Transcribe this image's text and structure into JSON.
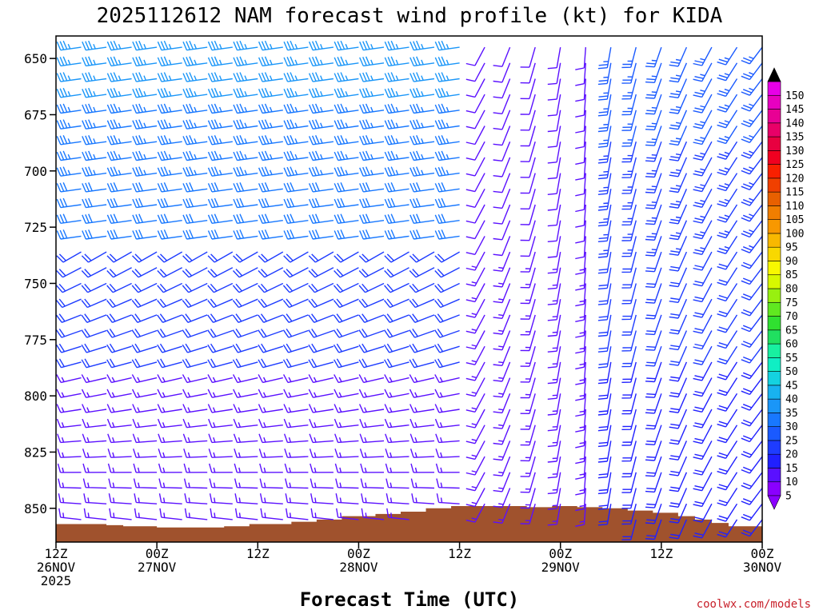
{
  "chart_data": {
    "type": "wind-barb-profile",
    "title": "2025112612 NAM forecast wind profile (kt) for KIDA",
    "xlabel": "Forecast Time (UTC)",
    "ylabel": "",
    "credit": "coolwx.com/models",
    "y_axis": {
      "range": [
        640,
        865
      ],
      "ticks": [
        650,
        675,
        700,
        725,
        750,
        775,
        800,
        825,
        850
      ],
      "inverted": true
    },
    "x_axis": {
      "range_hours": [
        0,
        84
      ],
      "ticks": [
        {
          "h": 0,
          "line1": "12Z",
          "line2": "26NOV",
          "line3": "2025"
        },
        {
          "h": 12,
          "line1": "00Z",
          "line2": "27NOV",
          "line3": ""
        },
        {
          "h": 24,
          "line1": "12Z",
          "line2": "",
          "line3": ""
        },
        {
          "h": 36,
          "line1": "00Z",
          "line2": "28NOV",
          "line3": ""
        },
        {
          "h": 48,
          "line1": "12Z",
          "line2": "",
          "line3": ""
        },
        {
          "h": 60,
          "line1": "00Z",
          "line2": "29NOV",
          "line3": ""
        },
        {
          "h": 72,
          "line1": "12Z",
          "line2": "",
          "line3": ""
        },
        {
          "h": 84,
          "line1": "00Z",
          "line2": "30NOV",
          "line3": ""
        }
      ]
    },
    "colorbar": {
      "labels": [
        5,
        10,
        15,
        20,
        25,
        30,
        35,
        40,
        45,
        50,
        55,
        60,
        65,
        70,
        75,
        80,
        85,
        90,
        95,
        100,
        105,
        110,
        115,
        120,
        125,
        130,
        135,
        140,
        145,
        150
      ],
      "colors": [
        "#8a00ff",
        "#5a10ff",
        "#2020ff",
        "#1e3cff",
        "#1a5aff",
        "#1878ff",
        "#1a96f8",
        "#18b2f0",
        "#14d2e0",
        "#10eec4",
        "#18f0a0",
        "#20e060",
        "#30e030",
        "#60e820",
        "#98f010",
        "#d8f800",
        "#f8f800",
        "#f8d800",
        "#f8b800",
        "#f89800",
        "#f07e00",
        "#e86000",
        "#f04000",
        "#f82000",
        "#f00020",
        "#e80040",
        "#e80068",
        "#e80094",
        "#e800c0",
        "#e800e8"
      ],
      "arrow_top_color": "#000000",
      "arrow_bottom_color": "#8a00ff"
    },
    "terrain_color": "#a0522d",
    "terrain_pressure": [
      {
        "h": 0,
        "p": 857
      },
      {
        "h": 4,
        "p": 857
      },
      {
        "h": 6,
        "p": 857.5
      },
      {
        "h": 8,
        "p": 858
      },
      {
        "h": 12,
        "p": 858.5
      },
      {
        "h": 17,
        "p": 858.5
      },
      {
        "h": 20,
        "p": 858
      },
      {
        "h": 23,
        "p": 857
      },
      {
        "h": 28,
        "p": 856
      },
      {
        "h": 31,
        "p": 855
      },
      {
        "h": 34,
        "p": 853.5
      },
      {
        "h": 38,
        "p": 852.5
      },
      {
        "h": 41,
        "p": 851.5
      },
      {
        "h": 44,
        "p": 850
      },
      {
        "h": 47,
        "p": 849
      },
      {
        "h": 50,
        "p": 849
      },
      {
        "h": 53,
        "p": 849
      },
      {
        "h": 56,
        "p": 849.5
      },
      {
        "h": 59,
        "p": 849
      },
      {
        "h": 62,
        "p": 849.5
      },
      {
        "h": 65,
        "p": 850
      },
      {
        "h": 68,
        "p": 851
      },
      {
        "h": 71,
        "p": 852
      },
      {
        "h": 74,
        "p": 853.5
      },
      {
        "h": 76,
        "p": 855
      },
      {
        "h": 78,
        "p": 856.5
      },
      {
        "h": 80,
        "p": 858
      },
      {
        "h": 82,
        "p": 858
      },
      {
        "h": 84,
        "p": 857.5
      }
    ],
    "barb_levels": [
      645,
      652,
      659,
      666,
      673,
      680,
      687,
      694,
      701,
      708,
      715,
      722,
      729,
      736,
      743,
      750,
      757,
      764,
      771,
      778,
      785,
      792,
      799,
      806,
      813,
      820,
      827,
      834,
      841,
      848,
      855
    ],
    "time_step_hours": 3
  }
}
